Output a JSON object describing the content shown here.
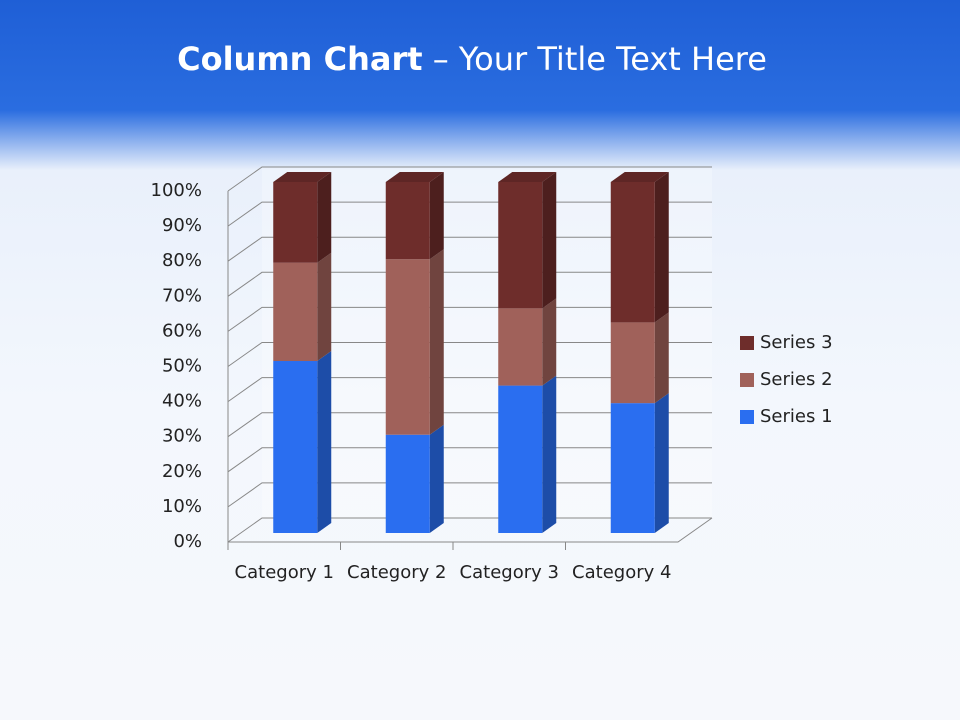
{
  "chart_data": {
    "type": "bar",
    "stacked": true,
    "title": {
      "bold": "Column Chart",
      "regular": "– Your Title Text Here"
    },
    "categories": [
      "Category 1",
      "Category 2",
      "Category 3",
      "Category 4"
    ],
    "series": [
      {
        "name": "Series 1",
        "color": "#2a6ef0",
        "values": [
          49,
          28,
          42,
          37
        ]
      },
      {
        "name": "Series 2",
        "color": "#a0615a",
        "values": [
          28,
          50,
          22,
          23
        ]
      },
      {
        "name": "Series 3",
        "color": "#6e2d2b",
        "values": [
          23,
          22,
          36,
          40
        ]
      }
    ],
    "ylim": [
      0,
      100
    ],
    "yticks": [
      {
        "value": 0,
        "label": "0%"
      },
      {
        "value": 10,
        "label": "10%"
      },
      {
        "value": 20,
        "label": "20%"
      },
      {
        "value": 30,
        "label": "30%"
      },
      {
        "value": 40,
        "label": "40%"
      },
      {
        "value": 50,
        "label": "50%"
      },
      {
        "value": 60,
        "label": "60%"
      },
      {
        "value": 70,
        "label": "70%"
      },
      {
        "value": 80,
        "label": "80%"
      },
      {
        "value": 90,
        "label": "90%"
      },
      {
        "value": 100,
        "label": "100%"
      }
    ],
    "grid": true,
    "legend": "right"
  }
}
